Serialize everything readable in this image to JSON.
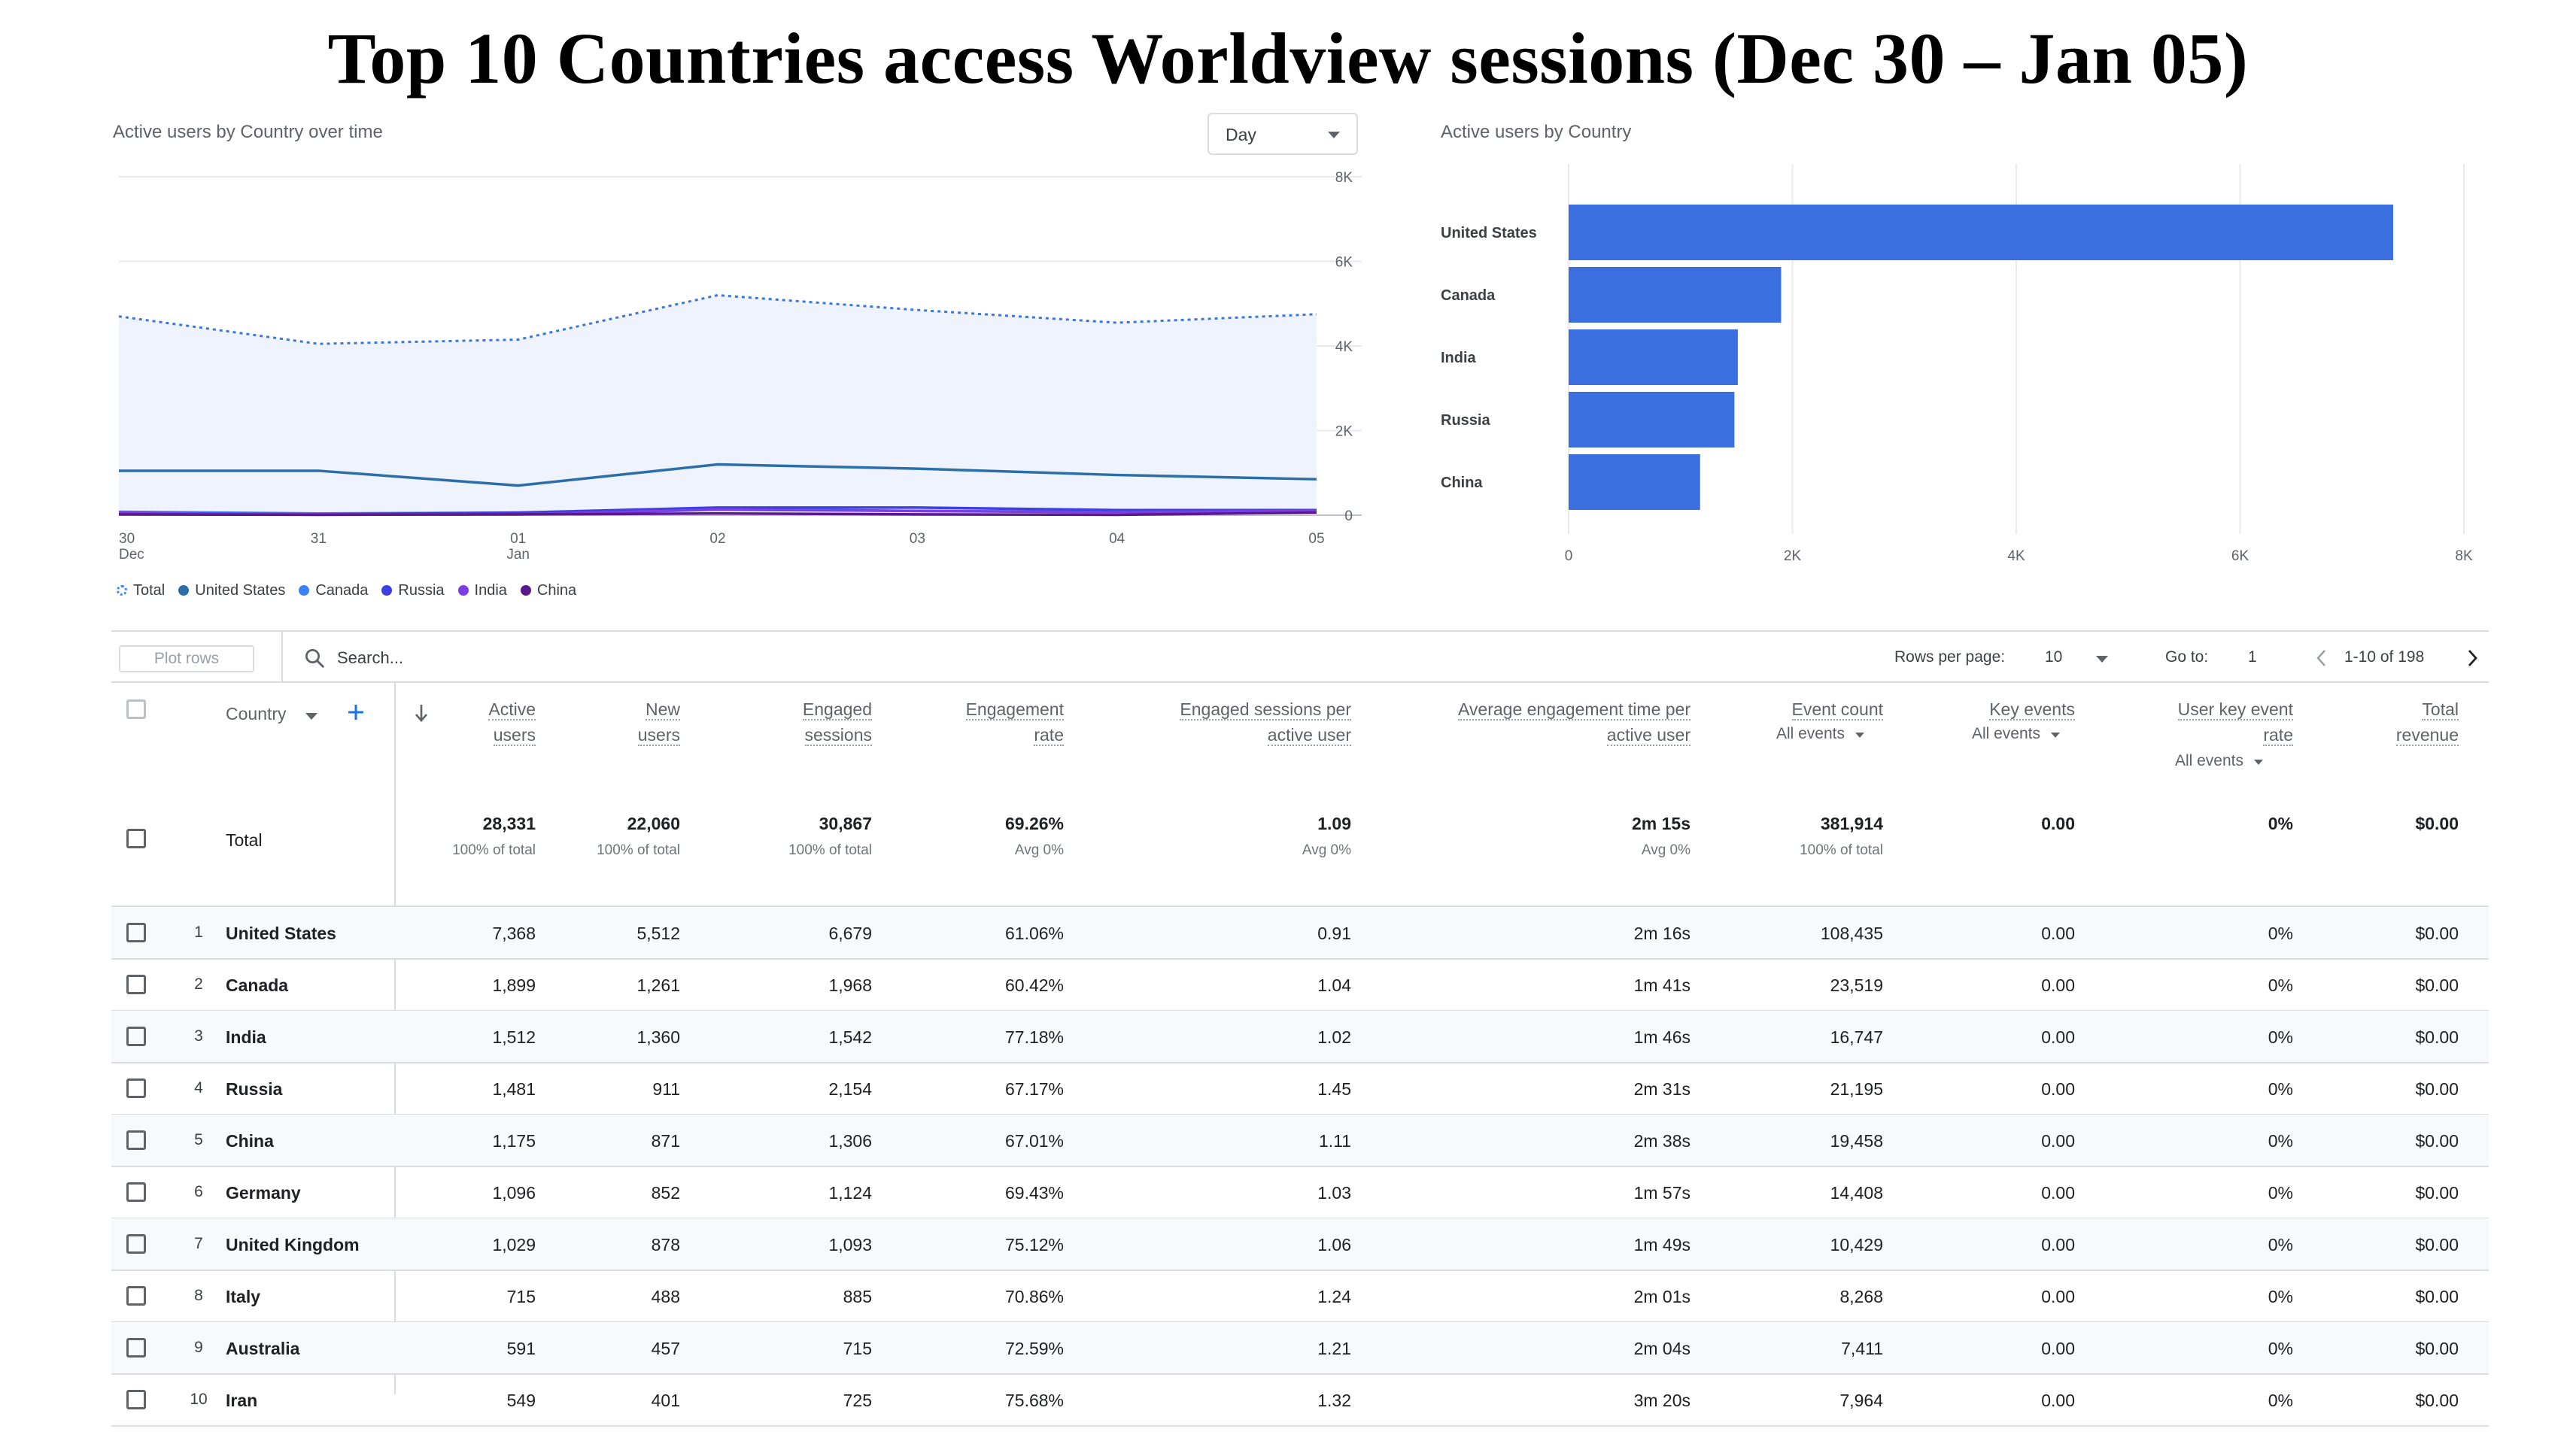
{
  "title": "Top 10 Countries access Worldview sessions (Dec 30 – Jan 05)",
  "line_card": {
    "title": "Active users by Country over time",
    "granularity": "Day",
    "x_ticks": [
      {
        "line1": "30",
        "line2": "Dec"
      },
      {
        "line1": "31",
        "line2": ""
      },
      {
        "line1": "01",
        "line2": "Jan"
      },
      {
        "line1": "02",
        "line2": ""
      },
      {
        "line1": "03",
        "line2": ""
      },
      {
        "line1": "04",
        "line2": ""
      },
      {
        "line1": "05",
        "line2": ""
      }
    ],
    "y_ticks": [
      "8K",
      "6K",
      "4K",
      "2K",
      "0"
    ],
    "legend": [
      {
        "name": "Total",
        "color": "#4285f4",
        "hollow": true
      },
      {
        "name": "United States",
        "color": "#2b6ea8",
        "hollow": false
      },
      {
        "name": "Canada",
        "color": "#3b82f6",
        "hollow": false
      },
      {
        "name": "Russia",
        "color": "#3d3fe0",
        "hollow": false
      },
      {
        "name": "India",
        "color": "#7b3fe4",
        "hollow": false
      },
      {
        "name": "China",
        "color": "#5b1a8c",
        "hollow": false
      }
    ]
  },
  "bar_card": {
    "title": "Active users by Country",
    "x_ticks": [
      "0",
      "2K",
      "4K",
      "6K",
      "8K"
    ],
    "color": "#3b6fe0"
  },
  "chart_data": [
    {
      "type": "line",
      "x": [
        "Dec 30",
        "Dec 31",
        "Jan 01",
        "Jan 02",
        "Jan 03",
        "Jan 04",
        "Jan 05"
      ],
      "ylim": [
        0,
        8000
      ],
      "series": [
        {
          "name": "Total",
          "values": [
            4700,
            4050,
            4150,
            5200,
            4850,
            4550,
            4750
          ]
        },
        {
          "name": "United States",
          "values": [
            1050,
            1050,
            700,
            1200,
            1100,
            950,
            850
          ]
        },
        {
          "name": "Canada",
          "values": [
            80,
            40,
            60,
            150,
            100,
            80,
            100
          ]
        },
        {
          "name": "Russia",
          "values": [
            20,
            20,
            60,
            180,
            180,
            120,
            120
          ]
        },
        {
          "name": "India",
          "values": [
            60,
            20,
            20,
            130,
            100,
            70,
            100
          ]
        },
        {
          "name": "China",
          "values": [
            20,
            10,
            20,
            40,
            20,
            10,
            60
          ]
        }
      ]
    },
    {
      "type": "bar",
      "categories": [
        "United States",
        "Canada",
        "India",
        "Russia",
        "China"
      ],
      "values": [
        7368,
        1899,
        1512,
        1481,
        1175
      ],
      "xlim": [
        0,
        8000
      ]
    }
  ],
  "toolbar": {
    "plot_rows": "Plot rows",
    "search_placeholder": "Search...",
    "rows_per_page_label": "Rows per page:",
    "rows_per_page": "10",
    "go_to_label": "Go to:",
    "go_to": "1",
    "range": "1-10 of 198"
  },
  "table": {
    "country_header": "Country",
    "columns": [
      {
        "l1": "Active",
        "l2": "users"
      },
      {
        "l1": "New",
        "l2": "users"
      },
      {
        "l1": "Engaged",
        "l2": "sessions"
      },
      {
        "l1": "Engagement",
        "l2": "rate"
      },
      {
        "l1": "Engaged sessions per",
        "l2": "active user"
      },
      {
        "l1": "Average engagement time per",
        "l2": "active user"
      },
      {
        "l1": "Event count",
        "l2": ""
      },
      {
        "l1": "Key events",
        "l2": ""
      },
      {
        "l1": "User key event",
        "l2": "rate"
      },
      {
        "l1": "Total",
        "l2": "revenue"
      }
    ],
    "filters": {
      "event_count": "All events",
      "key_events": "All events",
      "user_key_event_rate": "All events"
    },
    "total": {
      "label": "Total",
      "values": [
        "28,331",
        "22,060",
        "30,867",
        "69.26%",
        "1.09",
        "2m 15s",
        "381,914",
        "0.00",
        "0%",
        "$0.00"
      ],
      "subs": [
        "100% of total",
        "100% of total",
        "100% of total",
        "Avg 0%",
        "Avg 0%",
        "Avg 0%",
        "100% of total",
        "",
        "",
        ""
      ]
    },
    "rows": [
      {
        "rank": "1",
        "country": "United States",
        "values": [
          "7,368",
          "5,512",
          "6,679",
          "61.06%",
          "0.91",
          "2m 16s",
          "108,435",
          "0.00",
          "0%",
          "$0.00"
        ]
      },
      {
        "rank": "2",
        "country": "Canada",
        "values": [
          "1,899",
          "1,261",
          "1,968",
          "60.42%",
          "1.04",
          "1m 41s",
          "23,519",
          "0.00",
          "0%",
          "$0.00"
        ]
      },
      {
        "rank": "3",
        "country": "India",
        "values": [
          "1,512",
          "1,360",
          "1,542",
          "77.18%",
          "1.02",
          "1m 46s",
          "16,747",
          "0.00",
          "0%",
          "$0.00"
        ]
      },
      {
        "rank": "4",
        "country": "Russia",
        "values": [
          "1,481",
          "911",
          "2,154",
          "67.17%",
          "1.45",
          "2m 31s",
          "21,195",
          "0.00",
          "0%",
          "$0.00"
        ]
      },
      {
        "rank": "5",
        "country": "China",
        "values": [
          "1,175",
          "871",
          "1,306",
          "67.01%",
          "1.11",
          "2m 38s",
          "19,458",
          "0.00",
          "0%",
          "$0.00"
        ]
      },
      {
        "rank": "6",
        "country": "Germany",
        "values": [
          "1,096",
          "852",
          "1,124",
          "69.43%",
          "1.03",
          "1m 57s",
          "14,408",
          "0.00",
          "0%",
          "$0.00"
        ]
      },
      {
        "rank": "7",
        "country": "United Kingdom",
        "values": [
          "1,029",
          "878",
          "1,093",
          "75.12%",
          "1.06",
          "1m 49s",
          "10,429",
          "0.00",
          "0%",
          "$0.00"
        ]
      },
      {
        "rank": "8",
        "country": "Italy",
        "values": [
          "715",
          "488",
          "885",
          "70.86%",
          "1.24",
          "2m 01s",
          "8,268",
          "0.00",
          "0%",
          "$0.00"
        ]
      },
      {
        "rank": "9",
        "country": "Australia",
        "values": [
          "591",
          "457",
          "715",
          "72.59%",
          "1.21",
          "2m 04s",
          "7,411",
          "0.00",
          "0%",
          "$0.00"
        ]
      },
      {
        "rank": "10",
        "country": "Iran",
        "values": [
          "549",
          "401",
          "725",
          "75.68%",
          "1.32",
          "3m 20s",
          "7,964",
          "0.00",
          "0%",
          "$0.00"
        ]
      }
    ]
  }
}
